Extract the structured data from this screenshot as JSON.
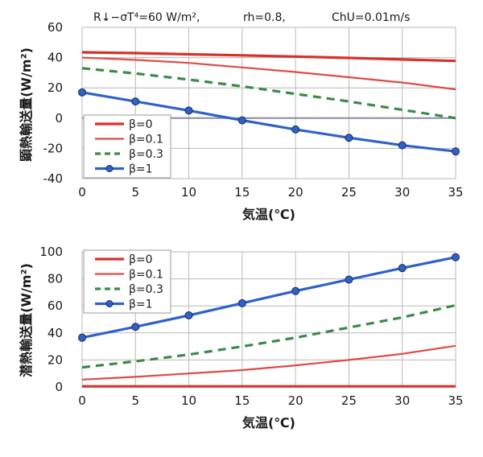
{
  "header": {
    "radiation": "R↓−σT⁴=60 W/m²,",
    "humidity": "rh=0.8,",
    "transfer": "ChU=0.01m/s",
    "transfer_color": "#d9302a"
  },
  "colors": {
    "beta0": "#d9302a",
    "beta01": "#e04a44",
    "beta03": "#3a8a4a",
    "beta1": "#2f62c8",
    "grid": "#b8b8b8",
    "zero_line": "#8a8aa0"
  },
  "chart_data": [
    {
      "type": "line",
      "title": "",
      "xlabel": "気温(℃)",
      "ylabel": "顕熱輸送量(W/m²)",
      "x": [
        0,
        5,
        10,
        15,
        20,
        25,
        30,
        35
      ],
      "xticks": [
        "0",
        "5",
        "10",
        "15",
        "20",
        "25",
        "30",
        "35"
      ],
      "yticks": [
        "-40",
        "-20",
        "0",
        "20",
        "40",
        "60"
      ],
      "xlim": [
        0,
        35
      ],
      "ylim": [
        -40,
        60
      ],
      "grid": true,
      "legend": "bottom-left",
      "series": [
        {
          "name": "β=0",
          "values": [
            43.5,
            43,
            42.2,
            41.5,
            40.7,
            39.8,
            38.8,
            37.8
          ]
        },
        {
          "name": "β=0.1",
          "values": [
            40,
            38.5,
            36.5,
            33.5,
            30.5,
            27,
            23.5,
            19
          ]
        },
        {
          "name": "β=0.3",
          "values": [
            33,
            29.5,
            25.5,
            21,
            16,
            11,
            5.5,
            0
          ]
        },
        {
          "name": "β=1",
          "values": [
            17,
            11,
            5,
            -1.5,
            -7.5,
            -13,
            -18,
            -22
          ]
        }
      ]
    },
    {
      "type": "line",
      "title": "",
      "xlabel": "気温(℃)",
      "ylabel": "潜熱輸送量(W/m²)",
      "x": [
        0,
        5,
        10,
        15,
        20,
        25,
        30,
        35
      ],
      "xticks": [
        "0",
        "5",
        "10",
        "15",
        "20",
        "25",
        "30",
        "35"
      ],
      "yticks": [
        "0",
        "20",
        "40",
        "60",
        "80",
        "100"
      ],
      "xlim": [
        0,
        35
      ],
      "ylim": [
        0,
        100
      ],
      "grid": true,
      "legend": "top-left",
      "series": [
        {
          "name": "β=0",
          "values": [
            0.5,
            0.5,
            0.5,
            0.5,
            0.5,
            0.5,
            0.5,
            0.5
          ]
        },
        {
          "name": "β=0.1",
          "values": [
            5.5,
            7.5,
            10,
            12.5,
            16,
            20,
            24.5,
            30.5
          ]
        },
        {
          "name": "β=0.3",
          "values": [
            14.5,
            19,
            24,
            30,
            36.5,
            44,
            51.5,
            60.5
          ]
        },
        {
          "name": "β=1",
          "values": [
            36.5,
            44.5,
            53,
            62,
            71,
            79.5,
            88,
            96
          ]
        }
      ]
    }
  ]
}
